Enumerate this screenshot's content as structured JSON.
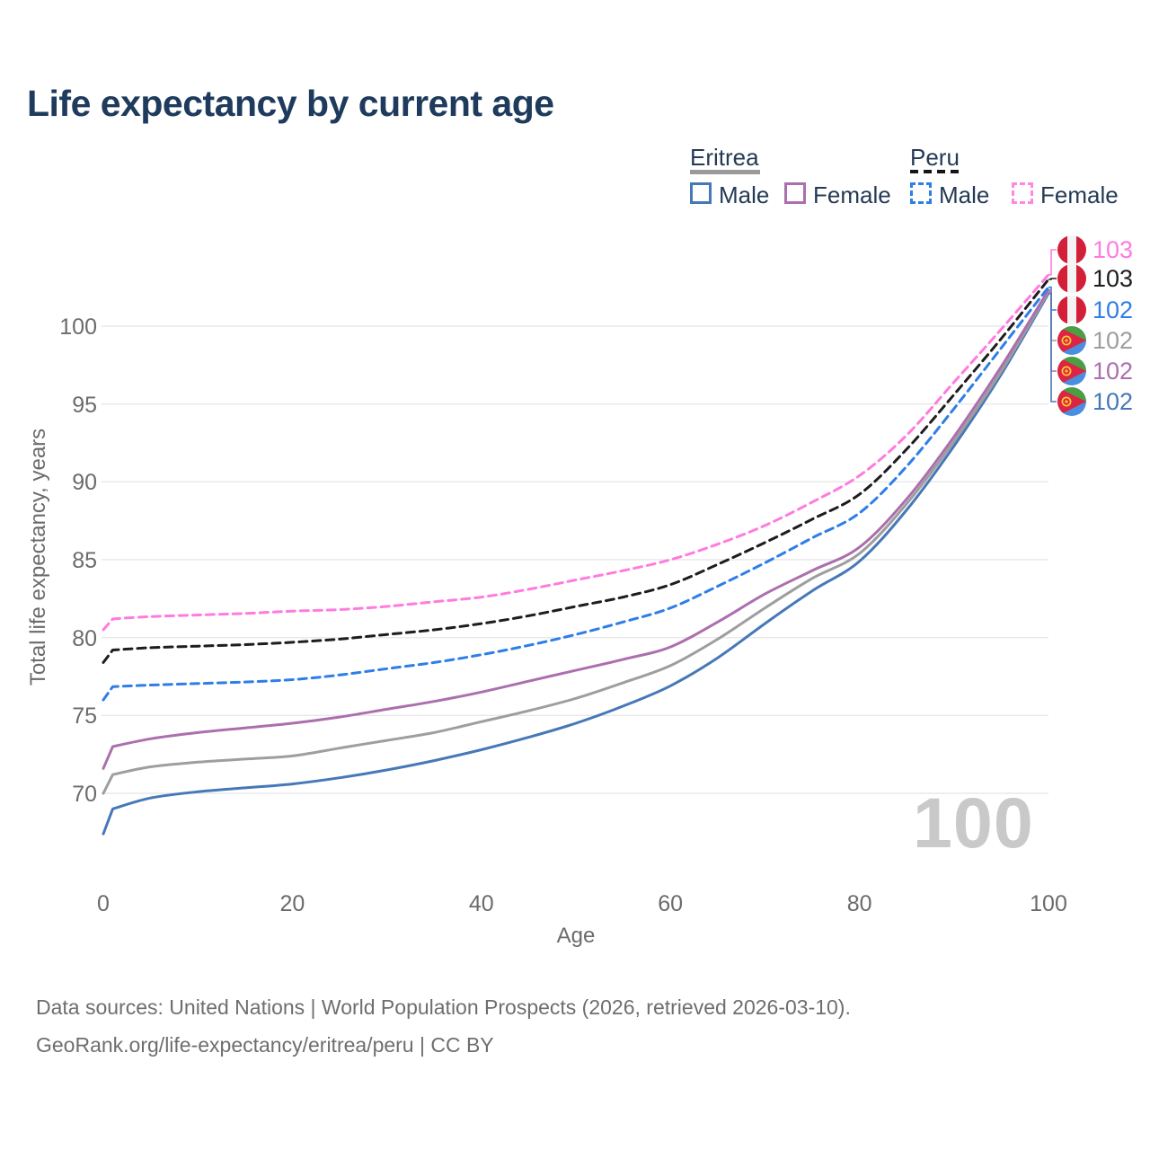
{
  "title": "Life expectancy by current age",
  "legend": {
    "eritrea": {
      "label": "Eritrea",
      "style": "solid",
      "male": "Male",
      "female": "Female"
    },
    "peru": {
      "label": "Peru",
      "style": "dashed",
      "male": "Male",
      "female": "Female"
    }
  },
  "axes": {
    "y_label": "Total life expectancy, years",
    "x_label": "Age",
    "y_ticks": [
      70,
      75,
      80,
      85,
      90,
      95,
      100
    ],
    "x_ticks": [
      0,
      20,
      40,
      60,
      80,
      100
    ]
  },
  "watermark": "100",
  "footer": {
    "line1": "Data sources: United Nations | World Population Prospects (2026, retrieved 2026-03-10).",
    "line2": "GeoRank.org/life-expectancy/eritrea/peru | CC BY"
  },
  "colors": {
    "title_text": "#1e3a5c",
    "axis_text": "#6b6b6b",
    "gridline": "#e8e8e8",
    "watermark": "#c9c9c9",
    "eritrea_male": "#4678b8",
    "eritrea_female": "#ac6fae",
    "eritrea_both": "#9e9e9e",
    "peru_male": "#2e7ee8",
    "peru_female": "#ff7bdf",
    "peru_both": "#1d1d1d",
    "peru_flag_red": "#d32038",
    "eritrea_flag_green": "#4a9e43",
    "eritrea_flag_blue": "#4b8ee0",
    "eritrea_flag_red": "#dc2445",
    "eritrea_flag_yellow": "#ffc72c"
  },
  "chart_data": {
    "type": "line",
    "title": "Life expectancy by current age",
    "xlabel": "Age",
    "ylabel": "Total life expectancy, years",
    "xlim": [
      0,
      100
    ],
    "ylim": [
      67,
      104
    ],
    "grid": "horizontal",
    "x": [
      0,
      1,
      5,
      10,
      15,
      20,
      25,
      30,
      35,
      40,
      45,
      50,
      55,
      60,
      65,
      70,
      75,
      80,
      85,
      90,
      95,
      100
    ],
    "series": [
      {
        "name": "Peru Female",
        "country": "Peru",
        "sex": "Female",
        "style": "dashed",
        "color": "#ff7bdf",
        "end_label": "103",
        "values": [
          80.5,
          81.2,
          81.35,
          81.45,
          81.55,
          81.7,
          81.8,
          82.0,
          82.3,
          82.6,
          83.1,
          83.7,
          84.3,
          85.0,
          86.0,
          87.2,
          88.7,
          90.4,
          93.0,
          96.4,
          99.8,
          103.3
        ]
      },
      {
        "name": "Peru Both sexes",
        "country": "Peru",
        "sex": "Both",
        "style": "dashed",
        "color": "#1d1d1d",
        "end_label": "103",
        "values": [
          78.4,
          79.2,
          79.35,
          79.45,
          79.55,
          79.7,
          79.9,
          80.2,
          80.5,
          80.9,
          81.4,
          82.0,
          82.6,
          83.4,
          84.7,
          86.1,
          87.6,
          89.2,
          92.1,
          95.6,
          99.2,
          103.0
        ]
      },
      {
        "name": "Peru Male",
        "country": "Peru",
        "sex": "Male",
        "style": "dashed",
        "color": "#2e7ee8",
        "end_label": "102",
        "values": [
          76.0,
          76.85,
          76.95,
          77.05,
          77.15,
          77.3,
          77.6,
          78.0,
          78.4,
          78.9,
          79.5,
          80.2,
          81.0,
          81.9,
          83.3,
          84.8,
          86.4,
          88.0,
          91.0,
          94.7,
          98.6,
          102.5
        ]
      },
      {
        "name": "Eritrea Both sexes",
        "country": "Eritrea",
        "sex": "Both",
        "style": "solid",
        "color": "#9e9e9e",
        "end_label": "102",
        "values": [
          70.0,
          71.2,
          71.7,
          72.0,
          72.2,
          72.4,
          72.9,
          73.4,
          73.9,
          74.6,
          75.3,
          76.1,
          77.1,
          78.2,
          79.9,
          81.9,
          83.8,
          85.4,
          88.6,
          92.6,
          97.1,
          102.2
        ]
      },
      {
        "name": "Eritrea Female",
        "country": "Eritrea",
        "sex": "Female",
        "style": "solid",
        "color": "#ac6fae",
        "end_label": "102",
        "values": [
          71.6,
          73.0,
          73.5,
          73.9,
          74.2,
          74.5,
          74.9,
          75.4,
          75.9,
          76.5,
          77.2,
          77.9,
          78.6,
          79.4,
          81.0,
          82.8,
          84.3,
          85.8,
          88.9,
          92.9,
          97.4,
          102.3
        ]
      },
      {
        "name": "Eritrea Male",
        "country": "Eritrea",
        "sex": "Male",
        "style": "solid",
        "color": "#4678b8",
        "end_label": "102",
        "values": [
          67.4,
          69.0,
          69.7,
          70.1,
          70.35,
          70.6,
          71.0,
          71.5,
          72.1,
          72.8,
          73.6,
          74.5,
          75.6,
          76.9,
          78.7,
          80.9,
          83.0,
          84.9,
          88.2,
          92.3,
          96.9,
          102.1
        ]
      }
    ],
    "end_label_order_top_to_bottom": [
      "Peru Female",
      "Peru Both sexes",
      "Peru Male",
      "Eritrea Both sexes",
      "Eritrea Female",
      "Eritrea Male"
    ],
    "legend_position": "top-right"
  }
}
